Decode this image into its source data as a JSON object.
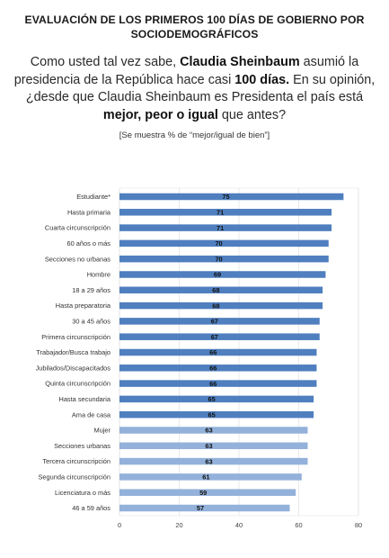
{
  "header": {
    "title_line1": "EVALUACIÓN DE LOS PRIMEROS 100 DÍAS DE GOBIERNO POR",
    "title_line2": "SOCIODEMOGRÁFICOS",
    "q_part1": "Como usted tal vez sabe, ",
    "q_bold1": "Claudia Sheinbaum",
    "q_part2": " asumió la presidencia de la República hace casi ",
    "q_bold2": "100 días.",
    "q_part3": " En su opinión, ¿desde que Claudia Sheinbaum es Presidenta el país está ",
    "q_bold3": "mejor, peor o igual",
    "q_part4": " que antes?",
    "note": "[Se muestra % de “mejor/igual de bien”]"
  },
  "colors": {
    "dark_bar": "#4f7fbf",
    "light_bar": "#93b1da",
    "grid": "#e4e4e4"
  },
  "chart_data": {
    "type": "bar",
    "orientation": "horizontal",
    "categories": [
      "Estudiante*",
      "Hasta primaria",
      "Cuarta circunscripción",
      "60 años o más",
      "Secciones no urbanas",
      "Hombre",
      "18 a 29 años",
      "Hasta preparatoria",
      "30 a 45 años",
      "Primera circunscripción",
      "Trabajador/Busca trabajo",
      "Jubilados/Discapacitados",
      "Quinta circunscripción",
      "Hasta secundaria",
      "Ama de casa",
      "Mujer",
      "Secciones urbanas",
      "Tercera circunscripción",
      "Segunda circunscripción",
      "Licenciatura o más",
      "46 a 59 años"
    ],
    "values": [
      75,
      71,
      71,
      70,
      70,
      69,
      68,
      68,
      67,
      67,
      66,
      66,
      66,
      65,
      65,
      63,
      63,
      63,
      61,
      59,
      57
    ],
    "highlight": [
      "dark",
      "dark",
      "dark",
      "dark",
      "dark",
      "dark",
      "dark",
      "dark",
      "dark",
      "dark",
      "dark",
      "dark",
      "dark",
      "dark",
      "dark",
      "light",
      "light",
      "light",
      "light",
      "light",
      "light"
    ],
    "xlim": [
      0,
      80
    ],
    "xticks": [
      0,
      20,
      40,
      60,
      80
    ],
    "grid": true
  }
}
